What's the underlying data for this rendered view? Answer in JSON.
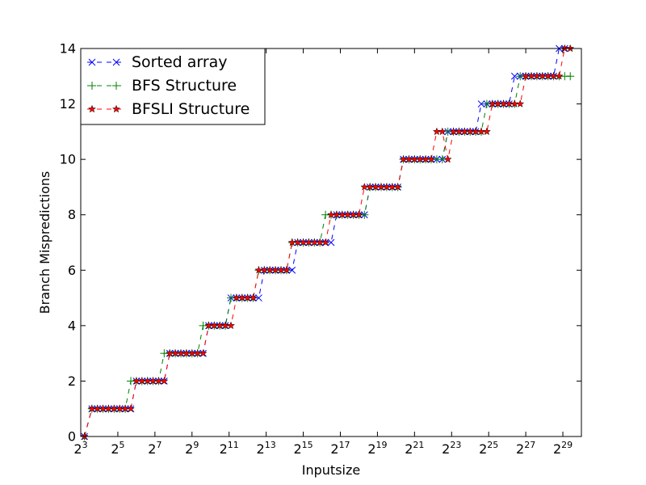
{
  "chart_data": {
    "type": "line",
    "title": "",
    "xlabel": "Inputsize",
    "ylabel": "Branch Mispredictions",
    "x_scale": "log2",
    "xlim_exp": [
      3,
      30
    ],
    "ylim": [
      0,
      14
    ],
    "x_ticks": [
      {
        "exp": 3,
        "base": "2",
        "sup": "3"
      },
      {
        "exp": 5,
        "base": "2",
        "sup": "5"
      },
      {
        "exp": 7,
        "base": "2",
        "sup": "7"
      },
      {
        "exp": 9,
        "base": "2",
        "sup": "9"
      },
      {
        "exp": 11,
        "base": "2",
        "sup": "11"
      },
      {
        "exp": 13,
        "base": "2",
        "sup": "13"
      },
      {
        "exp": 15,
        "base": "2",
        "sup": "15"
      },
      {
        "exp": 17,
        "base": "2",
        "sup": "17"
      },
      {
        "exp": 19,
        "base": "2",
        "sup": "19"
      },
      {
        "exp": 21,
        "base": "2",
        "sup": "21"
      },
      {
        "exp": 23,
        "base": "2",
        "sup": "23"
      },
      {
        "exp": 25,
        "base": "2",
        "sup": "25"
      },
      {
        "exp": 27,
        "base": "2",
        "sup": "27"
      },
      {
        "exp": 29,
        "base": "2",
        "sup": "29"
      }
    ],
    "y_ticks": [
      "0",
      "2",
      "4",
      "6",
      "8",
      "10",
      "12",
      "14"
    ],
    "grid": false,
    "legend_position": "top-left",
    "series": [
      {
        "name": "Sorted array",
        "color": "#0000ff",
        "marker": "x",
        "points": [
          [
            3.2,
            0
          ],
          [
            3.6,
            1
          ],
          [
            3.9,
            1
          ],
          [
            4.2,
            1
          ],
          [
            4.5,
            1
          ],
          [
            4.8,
            1
          ],
          [
            5.1,
            1
          ],
          [
            5.4,
            1
          ],
          [
            5.7,
            1
          ],
          [
            6.0,
            2
          ],
          [
            6.3,
            2
          ],
          [
            6.6,
            2
          ],
          [
            6.9,
            2
          ],
          [
            7.2,
            2
          ],
          [
            7.5,
            2
          ],
          [
            7.8,
            3
          ],
          [
            8.1,
            3
          ],
          [
            8.4,
            3
          ],
          [
            8.7,
            3
          ],
          [
            9.0,
            3
          ],
          [
            9.3,
            3
          ],
          [
            9.6,
            3
          ],
          [
            9.9,
            4
          ],
          [
            10.2,
            4
          ],
          [
            10.5,
            4
          ],
          [
            10.8,
            4
          ],
          [
            11.1,
            5
          ],
          [
            11.4,
            5
          ],
          [
            11.7,
            5
          ],
          [
            12.0,
            5
          ],
          [
            12.3,
            5
          ],
          [
            12.6,
            5
          ],
          [
            12.9,
            6
          ],
          [
            13.2,
            6
          ],
          [
            13.5,
            6
          ],
          [
            13.8,
            6
          ],
          [
            14.1,
            6
          ],
          [
            14.4,
            6
          ],
          [
            14.7,
            7
          ],
          [
            15.0,
            7
          ],
          [
            15.3,
            7
          ],
          [
            15.6,
            7
          ],
          [
            15.9,
            7
          ],
          [
            16.2,
            7
          ],
          [
            16.5,
            7
          ],
          [
            16.8,
            8
          ],
          [
            17.1,
            8
          ],
          [
            17.4,
            8
          ],
          [
            17.7,
            8
          ],
          [
            18.0,
            8
          ],
          [
            18.3,
            8
          ],
          [
            18.6,
            9
          ],
          [
            18.9,
            9
          ],
          [
            19.2,
            9
          ],
          [
            19.5,
            9
          ],
          [
            19.8,
            9
          ],
          [
            20.1,
            9
          ],
          [
            20.4,
            10
          ],
          [
            20.7,
            10
          ],
          [
            21.0,
            10
          ],
          [
            21.3,
            10
          ],
          [
            21.6,
            10
          ],
          [
            21.9,
            10
          ],
          [
            22.2,
            10
          ],
          [
            22.5,
            10
          ],
          [
            22.8,
            11
          ],
          [
            23.1,
            11
          ],
          [
            23.4,
            11
          ],
          [
            23.7,
            11
          ],
          [
            24.0,
            11
          ],
          [
            24.3,
            11
          ],
          [
            24.6,
            12
          ],
          [
            24.9,
            12
          ],
          [
            25.2,
            12
          ],
          [
            25.5,
            12
          ],
          [
            25.8,
            12
          ],
          [
            26.1,
            12
          ],
          [
            26.4,
            13
          ],
          [
            26.7,
            13
          ],
          [
            27.0,
            13
          ],
          [
            27.3,
            13
          ],
          [
            27.6,
            13
          ],
          [
            27.9,
            13
          ],
          [
            28.2,
            13
          ],
          [
            28.5,
            13
          ],
          [
            28.8,
            14
          ],
          [
            29.1,
            14
          ]
        ]
      },
      {
        "name": "BFS Structure",
        "color": "#008000",
        "marker": "+",
        "points": [
          [
            3.2,
            0
          ],
          [
            3.6,
            1
          ],
          [
            3.9,
            1
          ],
          [
            4.2,
            1
          ],
          [
            4.5,
            1
          ],
          [
            4.8,
            1
          ],
          [
            5.1,
            1
          ],
          [
            5.4,
            1
          ],
          [
            5.7,
            2
          ],
          [
            6.0,
            2
          ],
          [
            6.3,
            2
          ],
          [
            6.6,
            2
          ],
          [
            6.9,
            2
          ],
          [
            7.2,
            2
          ],
          [
            7.5,
            3
          ],
          [
            7.8,
            3
          ],
          [
            8.1,
            3
          ],
          [
            8.4,
            3
          ],
          [
            8.7,
            3
          ],
          [
            9.0,
            3
          ],
          [
            9.3,
            3
          ],
          [
            9.6,
            4
          ],
          [
            9.9,
            4
          ],
          [
            10.2,
            4
          ],
          [
            10.5,
            4
          ],
          [
            10.8,
            4
          ],
          [
            11.1,
            5
          ],
          [
            11.4,
            5
          ],
          [
            11.7,
            5
          ],
          [
            12.0,
            5
          ],
          [
            12.3,
            5
          ],
          [
            12.6,
            6
          ],
          [
            12.9,
            6
          ],
          [
            13.2,
            6
          ],
          [
            13.5,
            6
          ],
          [
            13.8,
            6
          ],
          [
            14.1,
            6
          ],
          [
            14.4,
            7
          ],
          [
            14.7,
            7
          ],
          [
            15.0,
            7
          ],
          [
            15.3,
            7
          ],
          [
            15.6,
            7
          ],
          [
            15.9,
            7
          ],
          [
            16.2,
            8
          ],
          [
            16.5,
            8
          ],
          [
            16.8,
            8
          ],
          [
            17.1,
            8
          ],
          [
            17.4,
            8
          ],
          [
            17.7,
            8
          ],
          [
            18.0,
            8
          ],
          [
            18.3,
            8
          ],
          [
            18.6,
            9
          ],
          [
            18.9,
            9
          ],
          [
            19.2,
            9
          ],
          [
            19.5,
            9
          ],
          [
            19.8,
            9
          ],
          [
            20.1,
            9
          ],
          [
            20.4,
            10
          ],
          [
            20.7,
            10
          ],
          [
            21.0,
            10
          ],
          [
            21.3,
            10
          ],
          [
            21.6,
            10
          ],
          [
            21.9,
            10
          ],
          [
            22.2,
            10
          ],
          [
            22.5,
            10
          ],
          [
            22.8,
            11
          ],
          [
            23.1,
            11
          ],
          [
            23.4,
            11
          ],
          [
            23.7,
            11
          ],
          [
            24.0,
            11
          ],
          [
            24.3,
            11
          ],
          [
            24.6,
            11
          ],
          [
            24.9,
            12
          ],
          [
            25.2,
            12
          ],
          [
            25.5,
            12
          ],
          [
            25.8,
            12
          ],
          [
            26.1,
            12
          ],
          [
            26.4,
            12
          ],
          [
            26.7,
            13
          ],
          [
            27.0,
            13
          ],
          [
            27.3,
            13
          ],
          [
            27.6,
            13
          ],
          [
            27.9,
            13
          ],
          [
            28.2,
            13
          ],
          [
            28.5,
            13
          ],
          [
            28.8,
            13
          ],
          [
            29.1,
            13
          ],
          [
            29.4,
            13
          ]
        ]
      },
      {
        "name": "BFSLI Structure",
        "color": "#ff0000",
        "marker": "star",
        "points": [
          [
            3.2,
            0
          ],
          [
            3.6,
            1
          ],
          [
            3.9,
            1
          ],
          [
            4.2,
            1
          ],
          [
            4.5,
            1
          ],
          [
            4.8,
            1
          ],
          [
            5.1,
            1
          ],
          [
            5.4,
            1
          ],
          [
            5.7,
            1
          ],
          [
            6.0,
            2
          ],
          [
            6.3,
            2
          ],
          [
            6.6,
            2
          ],
          [
            6.9,
            2
          ],
          [
            7.2,
            2
          ],
          [
            7.5,
            2
          ],
          [
            7.8,
            3
          ],
          [
            8.1,
            3
          ],
          [
            8.4,
            3
          ],
          [
            8.7,
            3
          ],
          [
            9.0,
            3
          ],
          [
            9.3,
            3
          ],
          [
            9.6,
            3
          ],
          [
            9.9,
            4
          ],
          [
            10.2,
            4
          ],
          [
            10.5,
            4
          ],
          [
            10.8,
            4
          ],
          [
            11.1,
            4
          ],
          [
            11.4,
            5
          ],
          [
            11.7,
            5
          ],
          [
            12.0,
            5
          ],
          [
            12.3,
            5
          ],
          [
            12.6,
            6
          ],
          [
            12.9,
            6
          ],
          [
            13.2,
            6
          ],
          [
            13.5,
            6
          ],
          [
            13.8,
            6
          ],
          [
            14.1,
            6
          ],
          [
            14.4,
            7
          ],
          [
            14.7,
            7
          ],
          [
            15.0,
            7
          ],
          [
            15.3,
            7
          ],
          [
            15.6,
            7
          ],
          [
            15.9,
            7
          ],
          [
            16.2,
            7
          ],
          [
            16.5,
            8
          ],
          [
            16.8,
            8
          ],
          [
            17.1,
            8
          ],
          [
            17.4,
            8
          ],
          [
            17.7,
            8
          ],
          [
            18.0,
            8
          ],
          [
            18.3,
            9
          ],
          [
            18.6,
            9
          ],
          [
            18.9,
            9
          ],
          [
            19.2,
            9
          ],
          [
            19.5,
            9
          ],
          [
            19.8,
            9
          ],
          [
            20.1,
            9
          ],
          [
            20.4,
            10
          ],
          [
            20.7,
            10
          ],
          [
            21.0,
            10
          ],
          [
            21.3,
            10
          ],
          [
            21.6,
            10
          ],
          [
            21.9,
            10
          ],
          [
            22.2,
            11
          ],
          [
            22.5,
            11
          ],
          [
            22.8,
            10
          ],
          [
            23.1,
            11
          ],
          [
            23.4,
            11
          ],
          [
            23.7,
            11
          ],
          [
            24.0,
            11
          ],
          [
            24.3,
            11
          ],
          [
            24.6,
            11
          ],
          [
            24.9,
            11
          ],
          [
            25.2,
            12
          ],
          [
            25.5,
            12
          ],
          [
            25.8,
            12
          ],
          [
            26.1,
            12
          ],
          [
            26.4,
            12
          ],
          [
            26.7,
            12
          ],
          [
            27.0,
            13
          ],
          [
            27.3,
            13
          ],
          [
            27.6,
            13
          ],
          [
            27.9,
            13
          ],
          [
            28.2,
            13
          ],
          [
            28.5,
            13
          ],
          [
            28.8,
            13
          ],
          [
            29.1,
            14
          ],
          [
            29.4,
            14
          ]
        ]
      }
    ]
  }
}
